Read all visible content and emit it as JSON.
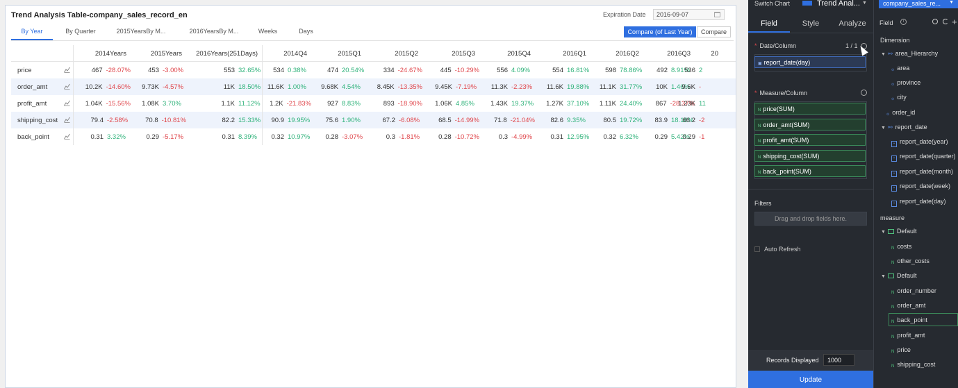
{
  "report": {
    "title": "Trend Analysis Table-company_sales_record_en",
    "expiration_label": "Expiration Date",
    "expiration_date": "2016-09-07",
    "tabs": [
      "By Year",
      "By Quarter",
      "2015YearsBy M...",
      "2016YearsBy M...",
      "Weeks",
      "Days"
    ],
    "compare_last_year": "Compare (of Last Year)",
    "compare": "Compare"
  },
  "table": {
    "columns": [
      "2014Years",
      "2015Years",
      "2016Years(251Days)",
      "2014Q4",
      "2015Q1",
      "2015Q2",
      "2015Q3",
      "2015Q4",
      "2016Q1",
      "2016Q2",
      "2016Q3",
      "20"
    ],
    "rows": [
      {
        "name": "price",
        "cells": [
          [
            "467",
            "-28.07%"
          ],
          [
            "453",
            "-3.00%"
          ],
          [
            "553",
            "32.65%"
          ],
          [
            "534",
            "0.38%"
          ],
          [
            "474",
            "20.54%"
          ],
          [
            "334",
            "-24.67%"
          ],
          [
            "445",
            "-10.29%"
          ],
          [
            "556",
            "4.09%"
          ],
          [
            "554",
            "16.81%"
          ],
          [
            "598",
            "78.86%"
          ],
          [
            "492",
            "8.91%"
          ],
          [
            "536",
            "2"
          ]
        ]
      },
      {
        "name": "order_amt",
        "cells": [
          [
            "10.2K",
            "-14.60%"
          ],
          [
            "9.73K",
            "-4.57%"
          ],
          [
            "11K",
            "18.50%"
          ],
          [
            "11.6K",
            "1.00%"
          ],
          [
            "9.68K",
            "4.54%"
          ],
          [
            "8.45K",
            "-13.35%"
          ],
          [
            "9.45K",
            "-7.19%"
          ],
          [
            "11.3K",
            "-2.23%"
          ],
          [
            "11.6K",
            "19.88%"
          ],
          [
            "11.1K",
            "31.77%"
          ],
          [
            "10K",
            "1.46%"
          ],
          [
            "9.6K",
            "-"
          ]
        ]
      },
      {
        "name": "profit_amt",
        "cells": [
          [
            "1.04K",
            "-15.56%"
          ],
          [
            "1.08K",
            "3.70%"
          ],
          [
            "1.1K",
            "11.12%"
          ],
          [
            "1.2K",
            "-21.83%"
          ],
          [
            "927",
            "8.83%"
          ],
          [
            "893",
            "-18.90%"
          ],
          [
            "1.06K",
            "4.85%"
          ],
          [
            "1.43K",
            "19.37%"
          ],
          [
            "1.27K",
            "37.10%"
          ],
          [
            "1.11K",
            "24.40%"
          ],
          [
            "867",
            "-28.37%"
          ],
          [
            "1.23K",
            "11"
          ]
        ]
      },
      {
        "name": "shipping_cost",
        "cells": [
          [
            "79.4",
            "-2.58%"
          ],
          [
            "70.8",
            "-10.81%"
          ],
          [
            "82.2",
            "15.33%"
          ],
          [
            "90.9",
            "19.95%"
          ],
          [
            "75.6",
            "1.90%"
          ],
          [
            "67.2",
            "-6.08%"
          ],
          [
            "68.5",
            "-14.99%"
          ],
          [
            "71.8",
            "-21.04%"
          ],
          [
            "82.6",
            "9.35%"
          ],
          [
            "80.5",
            "19.72%"
          ],
          [
            "83.9",
            "18.18%"
          ],
          [
            "66.2",
            "-2"
          ]
        ]
      },
      {
        "name": "back_point",
        "cells": [
          [
            "0.31",
            "3.32%"
          ],
          [
            "0.29",
            "-5.17%"
          ],
          [
            "0.31",
            "8.39%"
          ],
          [
            "0.32",
            "10.97%"
          ],
          [
            "0.28",
            "-3.07%"
          ],
          [
            "0.3",
            "-1.81%"
          ],
          [
            "0.28",
            "-10.72%"
          ],
          [
            "0.3",
            "-4.99%"
          ],
          [
            "0.31",
            "12.95%"
          ],
          [
            "0.32",
            "6.32%"
          ],
          [
            "0.29",
            "5.42%"
          ],
          [
            "0.29",
            "-1"
          ]
        ]
      }
    ]
  },
  "panel": {
    "switch_chart_label": "Switch Chart",
    "chart_name": "Trend Anal...",
    "tabs": [
      "Field",
      "Style",
      "Analyze"
    ],
    "date_column_label": "Date/Column",
    "date_count": "1 / 1",
    "date_field": "report_date(day)",
    "measure_label": "Measure/Column",
    "measures": [
      "price(SUM)",
      "order_amt(SUM)",
      "profit_amt(SUM)",
      "shipping_cost(SUM)",
      "back_point(SUM)"
    ],
    "filters_label": "Filters",
    "drag_drop": "Drag and drop fields here.",
    "auto_refresh": "Auto Refresh",
    "records_label": "Records Displayed",
    "records_value": "1000",
    "update": "Update"
  },
  "fields": {
    "dataset": "company_sales_re...",
    "field_label": "Field",
    "dimension_label": "Dimension",
    "dimension_items": [
      {
        "label": "area_Hierarchy",
        "kind": "hierarchy"
      },
      {
        "label": "area",
        "kind": "geo"
      },
      {
        "label": "province",
        "kind": "geo"
      },
      {
        "label": "city",
        "kind": "geo"
      },
      {
        "label": "order_id",
        "kind": "geo"
      },
      {
        "label": "report_date",
        "kind": "hierarchy"
      },
      {
        "label": "report_date(year)",
        "kind": "date"
      },
      {
        "label": "report_date(quarter)",
        "kind": "date"
      },
      {
        "label": "report_date(month)",
        "kind": "date"
      },
      {
        "label": "report_date(week)",
        "kind": "date"
      },
      {
        "label": "report_date(day)",
        "kind": "date"
      }
    ],
    "measure_label": "measure",
    "measure_items": [
      {
        "label": "Default",
        "kind": "folder"
      },
      {
        "label": "costs",
        "kind": "measure"
      },
      {
        "label": "other_costs",
        "kind": "measure"
      },
      {
        "label": "Default",
        "kind": "folder"
      },
      {
        "label": "order_number",
        "kind": "measure"
      },
      {
        "label": "order_amt",
        "kind": "measure"
      },
      {
        "label": "back_point",
        "kind": "measure"
      },
      {
        "label": "profit_amt",
        "kind": "measure"
      },
      {
        "label": "price",
        "kind": "measure"
      },
      {
        "label": "shipping_cost",
        "kind": "measure"
      }
    ]
  },
  "colors": {
    "accent": "#2f6fe0",
    "negative": "#e0474c",
    "positive": "#2fb27a",
    "panel_bg": "#262a30"
  }
}
